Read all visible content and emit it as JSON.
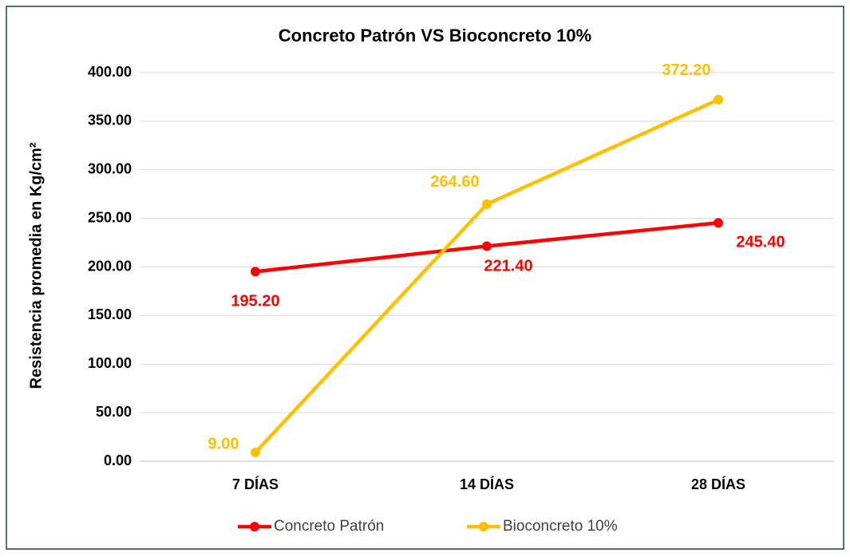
{
  "chart_data": {
    "type": "line",
    "title": "Concreto Patrón VS Bioconcreto 10%",
    "y_label": "Resistencia  promedia en Kg/cm²",
    "categories": [
      "7 DÍAS",
      "14 DÍAS",
      "28 DÍAS"
    ],
    "series": [
      {
        "name": "Concreto Patrón",
        "color": "#ff0000",
        "values": [
          195.2,
          221.4,
          245.4
        ],
        "value_labels": [
          "195.20",
          "221.40",
          "245.40"
        ]
      },
      {
        "name": "Bioconcreto 10%",
        "color": "#ffc000",
        "values": [
          9,
          264.6,
          372.2
        ],
        "value_labels": [
          "9.00",
          "264.60",
          "372.20"
        ]
      }
    ],
    "ylim": [
      0,
      400
    ],
    "yticks": [
      {
        "value": 0,
        "label": "0.00"
      },
      {
        "value": 50,
        "label": "50.00"
      },
      {
        "value": 100,
        "label": "100.00"
      },
      {
        "value": 150,
        "label": "150.00"
      },
      {
        "value": 200,
        "label": "200.00"
      },
      {
        "value": 250,
        "label": "250.00"
      },
      {
        "value": 300,
        "label": "300.00"
      },
      {
        "value": 350,
        "label": "350.00"
      },
      {
        "value": 400,
        "label": "400.00"
      }
    ],
    "grid": true,
    "legend": "bottom"
  }
}
